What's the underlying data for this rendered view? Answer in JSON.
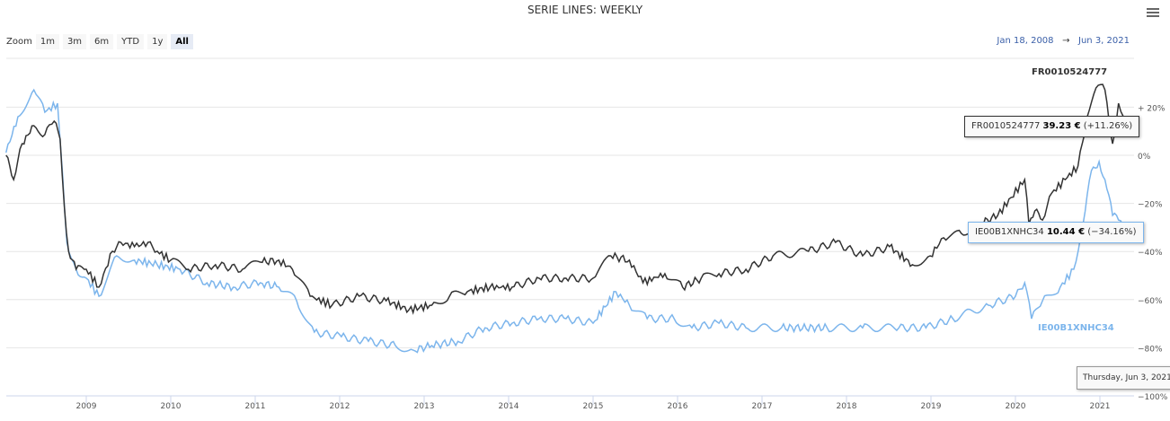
{
  "title": "SERIE LINES: WEEKLY",
  "menu_icon": "hamburger-icon",
  "zoom": {
    "label": "Zoom",
    "buttons": [
      "1m",
      "3m",
      "6m",
      "YTD",
      "1y",
      "All"
    ],
    "selected": "All"
  },
  "range": {
    "from": "Jan 18, 2008",
    "arrow": "→",
    "to": "Jun 3, 2021"
  },
  "tooltips": {
    "fr": {
      "name": "FR0010524777",
      "price": "39.23 €",
      "change": "(+11.26%)"
    },
    "ie": {
      "name": "IE00B1XNHC34",
      "price": "10.44 €",
      "change": "(−34.16%)"
    },
    "date": "Thursday, Jun 3, 2021"
  },
  "chart_data": {
    "type": "line",
    "title": "SERIE LINES: WEEKLY",
    "xlabel": "",
    "ylabel": "",
    "xlim": [
      2008.05,
      2021.42
    ],
    "ylim": [
      -100,
      40
    ],
    "x_ticks": [
      "2009",
      "2010",
      "2011",
      "2012",
      "2013",
      "2014",
      "2015",
      "2016",
      "2017",
      "2018",
      "2019",
      "2020",
      "2021"
    ],
    "y_ticks": [
      {
        "v": 20,
        "label": "+ 20%"
      },
      {
        "v": 0,
        "label": "0%"
      },
      {
        "v": -20,
        "label": "−20%"
      },
      {
        "v": -40,
        "label": "−40%"
      },
      {
        "v": -60,
        "label": "−60%"
      },
      {
        "v": -80,
        "label": "−80%"
      },
      {
        "v": -100,
        "label": "−100%"
      }
    ],
    "grid": true,
    "series": [
      {
        "name": "FR0010524777",
        "color": "#333333",
        "points": [
          [
            2008.05,
            0
          ],
          [
            2008.14,
            -10.1
          ],
          [
            2008.24,
            4.8
          ],
          [
            2008.38,
            12.3
          ],
          [
            2008.51,
            8.6
          ],
          [
            2008.62,
            14.2
          ],
          [
            2008.69,
            6.7
          ],
          [
            2008.74,
            -21.3
          ],
          [
            2008.79,
            -39.9
          ],
          [
            2008.88,
            -47.4
          ],
          [
            2009.0,
            -47.4
          ],
          [
            2009.15,
            -54.8
          ],
          [
            2009.31,
            -39.9
          ],
          [
            2009.41,
            -36.2
          ],
          [
            2009.57,
            -38
          ],
          [
            2009.73,
            -36.2
          ],
          [
            2009.84,
            -39.9
          ],
          [
            2010.0,
            -43.6
          ],
          [
            2010.21,
            -47.4
          ],
          [
            2010.53,
            -45.5
          ],
          [
            2010.85,
            -47.4
          ],
          [
            2011.06,
            -44.4
          ],
          [
            2011.28,
            -43.6
          ],
          [
            2011.44,
            -47.4
          ],
          [
            2011.65,
            -58.6
          ],
          [
            2011.91,
            -62.3
          ],
          [
            2012.23,
            -58.6
          ],
          [
            2012.55,
            -60.5
          ],
          [
            2012.82,
            -64.2
          ],
          [
            2013.09,
            -62.3
          ],
          [
            2013.3,
            -58.6
          ],
          [
            2013.51,
            -56.7
          ],
          [
            2013.78,
            -54.8
          ],
          [
            2014.04,
            -54.8
          ],
          [
            2014.36,
            -51.1
          ],
          [
            2014.68,
            -51.1
          ],
          [
            2015.0,
            -51.1
          ],
          [
            2015.21,
            -41.8
          ],
          [
            2015.43,
            -43.6
          ],
          [
            2015.59,
            -53
          ],
          [
            2015.85,
            -49.2
          ],
          [
            2016.06,
            -54.8
          ],
          [
            2016.28,
            -51.1
          ],
          [
            2016.49,
            -49.2
          ],
          [
            2016.81,
            -47.4
          ],
          [
            2017.13,
            -41.8
          ],
          [
            2017.55,
            -39.9
          ],
          [
            2017.87,
            -36.2
          ],
          [
            2018.19,
            -41.8
          ],
          [
            2018.51,
            -38
          ],
          [
            2018.78,
            -45.5
          ],
          [
            2018.99,
            -41.8
          ],
          [
            2019.15,
            -34.3
          ],
          [
            2019.36,
            -32.5
          ],
          [
            2019.57,
            -28.7
          ],
          [
            2019.79,
            -25
          ],
          [
            2019.95,
            -17.5
          ],
          [
            2020.11,
            -10.1
          ],
          [
            2020.16,
            -28.7
          ],
          [
            2020.23,
            -23.1
          ],
          [
            2020.32,
            -26.9
          ],
          [
            2020.43,
            -15.7
          ],
          [
            2020.59,
            -10.1
          ],
          [
            2020.74,
            -4.5
          ],
          [
            2020.85,
            16
          ],
          [
            2020.98,
            29.1
          ],
          [
            2021.06,
            27.2
          ],
          [
            2021.15,
            4.8
          ],
          [
            2021.22,
            21.6
          ],
          [
            2021.33,
            8.6
          ],
          [
            2021.42,
            11.26
          ]
        ]
      },
      {
        "name": "IE00B1XNHC34",
        "color": "#7cb5ec",
        "points": [
          [
            2008.05,
            1.1
          ],
          [
            2008.19,
            16
          ],
          [
            2008.38,
            27.2
          ],
          [
            2008.51,
            17.9
          ],
          [
            2008.66,
            21.6
          ],
          [
            2008.72,
            -8.2
          ],
          [
            2008.77,
            -36.2
          ],
          [
            2008.88,
            -47.4
          ],
          [
            2009.0,
            -51.1
          ],
          [
            2009.15,
            -58.6
          ],
          [
            2009.36,
            -41.8
          ],
          [
            2009.57,
            -43.6
          ],
          [
            2009.84,
            -45.5
          ],
          [
            2010.11,
            -47.4
          ],
          [
            2010.43,
            -53
          ],
          [
            2010.74,
            -54.8
          ],
          [
            2011.06,
            -53
          ],
          [
            2011.28,
            -54.8
          ],
          [
            2011.49,
            -60.5
          ],
          [
            2011.7,
            -73.5
          ],
          [
            2012.02,
            -75.4
          ],
          [
            2012.34,
            -77.3
          ],
          [
            2012.66,
            -79.1
          ],
          [
            2012.87,
            -81
          ],
          [
            2013.09,
            -79.1
          ],
          [
            2013.4,
            -77.3
          ],
          [
            2013.72,
            -71.7
          ],
          [
            2014.04,
            -69.8
          ],
          [
            2014.36,
            -67.9
          ],
          [
            2014.68,
            -67.9
          ],
          [
            2015.0,
            -69.8
          ],
          [
            2015.27,
            -56.7
          ],
          [
            2015.43,
            -62.3
          ],
          [
            2015.64,
            -67.9
          ],
          [
            2015.96,
            -67.9
          ],
          [
            2016.17,
            -71.7
          ],
          [
            2016.49,
            -69.8
          ],
          [
            2016.81,
            -71.7
          ],
          [
            2017.23,
            -71.7
          ],
          [
            2017.77,
            -71.7
          ],
          [
            2018.19,
            -71.7
          ],
          [
            2018.62,
            -71.7
          ],
          [
            2018.94,
            -71.7
          ],
          [
            2019.26,
            -67.9
          ],
          [
            2019.68,
            -62.3
          ],
          [
            2020.0,
            -58.6
          ],
          [
            2020.11,
            -53
          ],
          [
            2020.19,
            -67.9
          ],
          [
            2020.32,
            -60.5
          ],
          [
            2020.53,
            -54.8
          ],
          [
            2020.69,
            -47.4
          ],
          [
            2020.8,
            -28.7
          ],
          [
            2020.9,
            -6.3
          ],
          [
            2020.99,
            -2.6
          ],
          [
            2021.06,
            -10.1
          ],
          [
            2021.15,
            -25
          ],
          [
            2021.22,
            -26.9
          ],
          [
            2021.42,
            -34.16
          ]
        ]
      }
    ]
  }
}
